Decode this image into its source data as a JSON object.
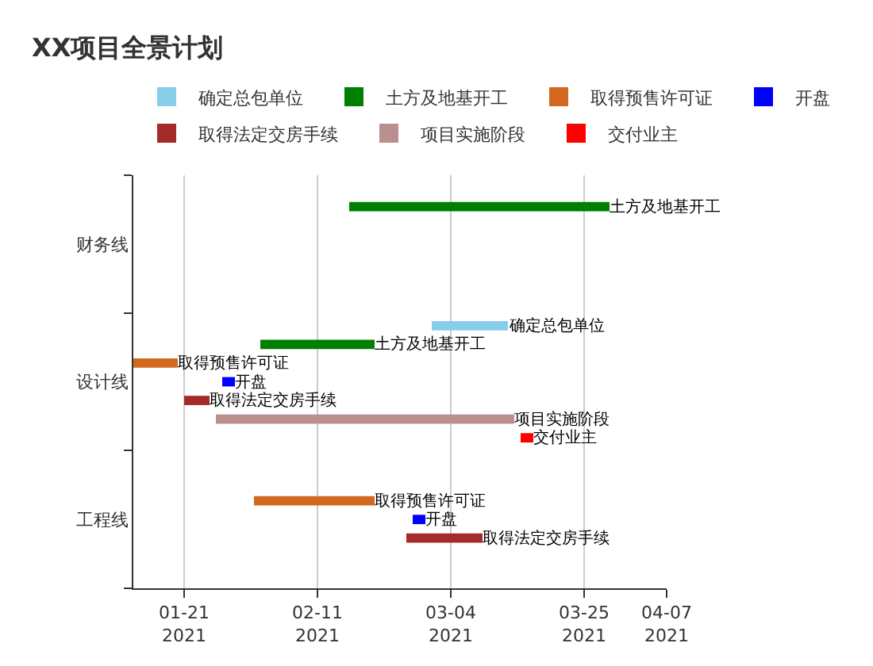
{
  "chart_data": {
    "type": "bar",
    "orientation": "horizontal",
    "title": "XX项目全景计划",
    "categories": [
      "财务线",
      "设计线",
      "工程线"
    ],
    "series": [
      {
        "name": "确定总包单位",
        "color": "#87ceeb",
        "base": [
          null,
          18687,
          null
        ],
        "values": [
          null,
          12,
          null
        ],
        "value_labels": [
          null,
          "确定总包单位",
          null
        ]
      },
      {
        "name": "土方及地基开工",
        "color": "#008000",
        "base": [
          18674,
          18660,
          null
        ],
        "values": [
          41,
          18,
          null
        ],
        "value_labels": [
          "土方及地基开工",
          "土方及地基开工",
          null
        ]
      },
      {
        "name": "取得预售许可证",
        "color": "#d2691e",
        "base": [
          null,
          18640,
          18659
        ],
        "values": [
          null,
          7,
          19
        ],
        "value_labels": [
          null,
          "取得预售许可证",
          "取得预售许可证"
        ]
      },
      {
        "name": "开盘",
        "color": "#0000ff",
        "base": [
          null,
          18654,
          18684
        ],
        "values": [
          null,
          2,
          2
        ],
        "value_labels": [
          null,
          "开盘",
          "开盘"
        ]
      },
      {
        "name": "取得法定交房手续",
        "color": "#a52a2a",
        "base": [
          null,
          18648,
          18683
        ],
        "values": [
          null,
          4,
          12
        ],
        "value_labels": [
          null,
          "取得法定交房手续",
          "取得法定交房手续"
        ]
      },
      {
        "name": "项目实施阶段",
        "color": "#bc8f8f",
        "base": [
          null,
          18653,
          null
        ],
        "values": [
          null,
          47,
          null
        ],
        "value_labels": [
          null,
          "项目实施阶段",
          null
        ]
      },
      {
        "name": "交付业主",
        "color": "#ff0000",
        "base": [
          null,
          18701,
          null
        ],
        "values": [
          null,
          2,
          null
        ],
        "value_labels": [
          null,
          "交付业主",
          null
        ]
      }
    ],
    "xlim": [
      "2021-01-13",
      "2021-04-07"
    ],
    "xticks": [
      {
        "value": "2021-01-21",
        "label": "01-21\n2021"
      },
      {
        "value": "2021-02-11",
        "label": "02-11\n2021"
      },
      {
        "value": "2021-03-04",
        "label": "03-04\n2021"
      },
      {
        "value": "2021-03-25",
        "label": "03-25\n2021"
      },
      {
        "value": "2021-04-07",
        "label": "04-07\n2021"
      }
    ],
    "grid": "x",
    "legend": "top"
  }
}
